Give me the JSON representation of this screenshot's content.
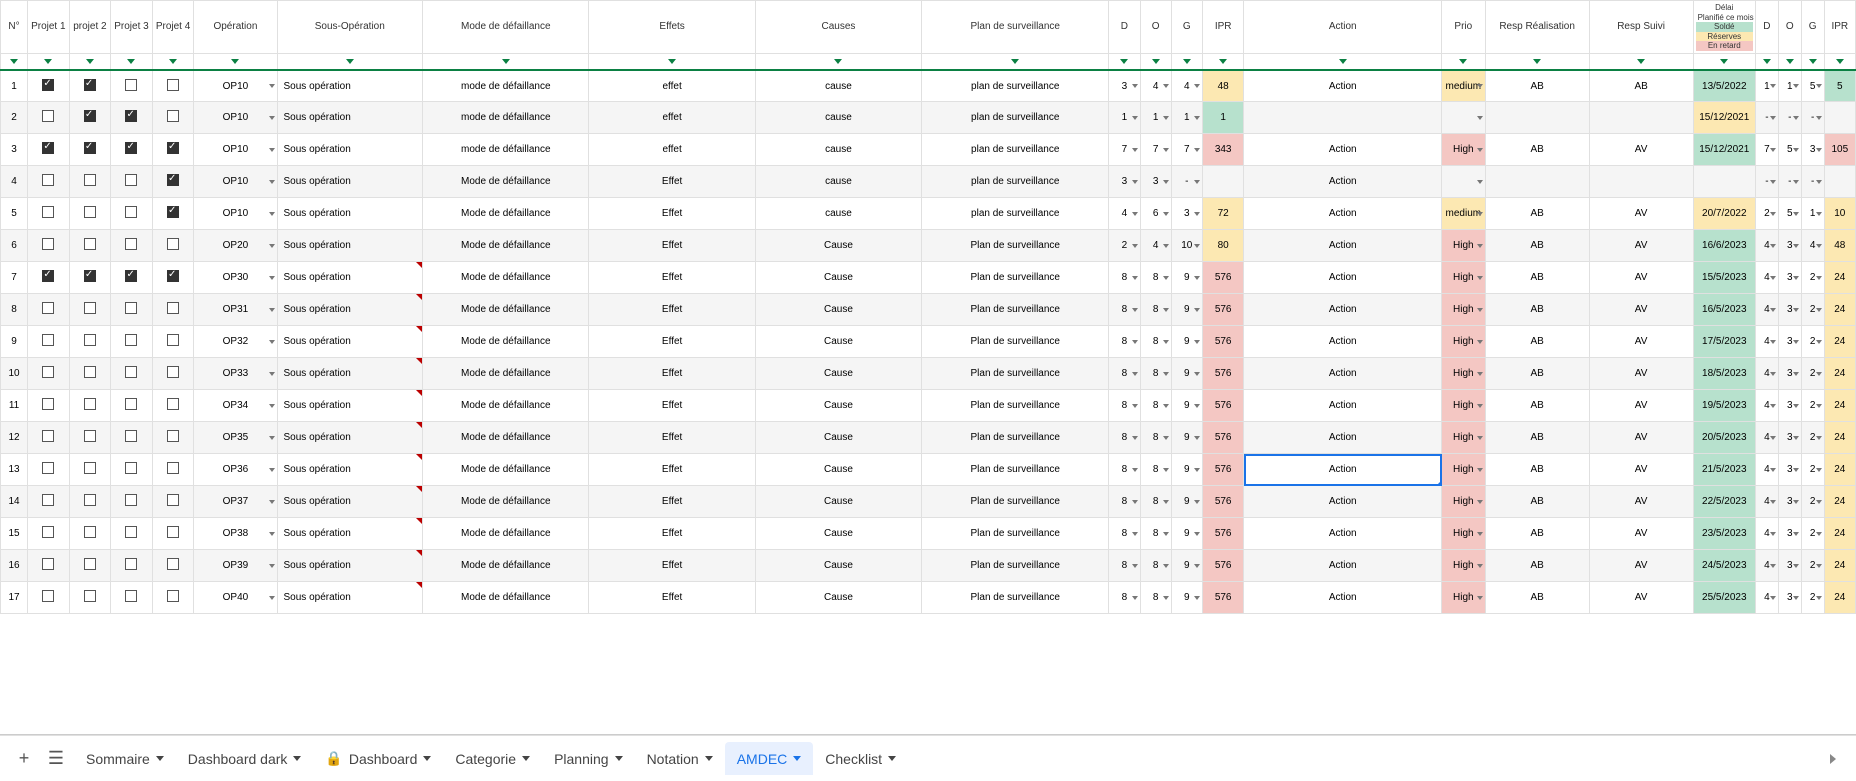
{
  "headers": {
    "num": "N°",
    "projet1": "Projet 1",
    "projet2": "projet 2",
    "projet3": "Projet 3",
    "projet4": "Projet 4",
    "operation": "Opération",
    "sousOperation": "Sous-Opération",
    "modeDef": "Mode de défaillance",
    "effets": "Effets",
    "causes": "Causes",
    "plan": "Plan de surveillance",
    "d": "D",
    "o": "O",
    "g": "G",
    "ipr": "IPR",
    "action": "Action",
    "prio": "Prio",
    "respReal": "Resp Réalisation",
    "respSuivi": "Resp Suivi",
    "delai": "Délai",
    "d2": "D",
    "o2": "O",
    "g2": "G",
    "ipr2": "IPR"
  },
  "legend": {
    "planifie": "Planifié ce mois",
    "solde": "Soldé",
    "reserves": "Réserves",
    "retard": "En retard"
  },
  "colors": {
    "solde": "#b7e1cd",
    "reserves": "#fce8b2",
    "retard": "#f4c7c3",
    "iprRed": "#f4c7c3",
    "iprGreen": "#b7e1cd",
    "iprOrange": "#fce8b2",
    "prioHigh": "#f4c7c3",
    "prioMed": "#fce8b2",
    "dateGreen": "#b7e1cd",
    "dateYellow": "#fce8b2",
    "border": "#e0e0e0",
    "filterBorder": "#0b8043",
    "selection": "#1a73e8"
  },
  "rows": [
    {
      "n": 1,
      "p1": true,
      "p2": true,
      "p3": false,
      "p4": false,
      "op": "OP10",
      "sop": "Sous opération",
      "mode": "mode de défaillance",
      "eff": "effet",
      "cau": "cause",
      "plan": "plan de surveillance",
      "d": 3,
      "o": 4,
      "g": 4,
      "ipr": 48,
      "iprC": "orange",
      "act": "Action",
      "prio": "medium",
      "prioC": "med",
      "rr": "AB",
      "rs": "AB",
      "date": "13/5/2022",
      "dateC": "green",
      "d2": 1,
      "o2": 1,
      "g2": 5,
      "ipr2": 5,
      "ipr2C": "green"
    },
    {
      "n": 2,
      "p1": false,
      "p2": true,
      "p3": true,
      "p4": false,
      "op": "OP10",
      "sop": "Sous opération",
      "mode": "mode de défaillance",
      "eff": "effet",
      "cau": "cause",
      "plan": "plan de surveillance",
      "d": 1,
      "o": 1,
      "g": 1,
      "ipr": 1,
      "iprC": "green",
      "act": "",
      "prio": "",
      "prioC": "",
      "rr": "",
      "rs": "",
      "date": "15/12/2021",
      "dateC": "yellow",
      "d2": "-",
      "o2": "-",
      "g2": "-",
      "ipr2": "",
      "ipr2C": ""
    },
    {
      "n": 3,
      "p1": true,
      "p2": true,
      "p3": true,
      "p4": true,
      "op": "OP10",
      "sop": "Sous opération",
      "mode": "mode de défaillance",
      "eff": "effet",
      "cau": "cause",
      "plan": "plan de surveillance",
      "d": 7,
      "o": 7,
      "g": 7,
      "ipr": 343,
      "iprC": "red",
      "act": "Action",
      "prio": "High",
      "prioC": "high",
      "rr": "AB",
      "rs": "AV",
      "date": "15/12/2021",
      "dateC": "green",
      "d2": 7,
      "o2": 5,
      "g2": 3,
      "ipr2": 105,
      "ipr2C": "red"
    },
    {
      "n": 4,
      "p1": false,
      "p2": false,
      "p3": false,
      "p4": true,
      "op": "OP10",
      "sop": "Sous opération",
      "mode": "Mode de défaillance",
      "eff": "Effet",
      "cau": "cause",
      "plan": "plan de surveillance",
      "d": 3,
      "o": 3,
      "g": "-",
      "ipr": "",
      "iprC": "",
      "act": "Action",
      "prio": "",
      "prioC": "",
      "rr": "",
      "rs": "",
      "date": "",
      "dateC": "",
      "d2": "-",
      "o2": "-",
      "g2": "-",
      "ipr2": "",
      "ipr2C": ""
    },
    {
      "n": 5,
      "p1": false,
      "p2": false,
      "p3": false,
      "p4": true,
      "op": "OP10",
      "sop": "Sous opération",
      "mode": "Mode de défaillance",
      "eff": "Effet",
      "cau": "cause",
      "plan": "plan de surveillance",
      "d": 4,
      "o": 6,
      "g": 3,
      "ipr": 72,
      "iprC": "orange",
      "act": "Action",
      "prio": "medium",
      "prioC": "med",
      "rr": "AB",
      "rs": "AV",
      "date": "20/7/2022",
      "dateC": "yellow",
      "d2": 2,
      "o2": 5,
      "g2": 1,
      "ipr2": 10,
      "ipr2C": "orange"
    },
    {
      "n": 6,
      "p1": false,
      "p2": false,
      "p3": false,
      "p4": false,
      "op": "OP20",
      "sop": "Sous opération",
      "mode": "Mode de défaillance",
      "eff": "Effet",
      "cau": "Cause",
      "plan": "Plan de surveillance",
      "d": 2,
      "o": 4,
      "g": 10,
      "ipr": 80,
      "iprC": "orange",
      "act": "Action",
      "prio": "High",
      "prioC": "high",
      "rr": "AB",
      "rs": "AV",
      "date": "16/6/2023",
      "dateC": "green",
      "d2": 4,
      "o2": 3,
      "g2": 4,
      "ipr2": 48,
      "ipr2C": "orange"
    },
    {
      "n": 7,
      "p1": true,
      "p2": true,
      "p3": true,
      "p4": true,
      "op": "OP30",
      "sop": "Sous opération",
      "mode": "Mode de défaillance",
      "eff": "Effet",
      "cau": "Cause",
      "plan": "Plan de surveillance",
      "d": 8,
      "o": 8,
      "g": 9,
      "ipr": 576,
      "iprC": "red",
      "act": "Action",
      "prio": "High",
      "prioC": "high",
      "rr": "AB",
      "rs": "AV",
      "date": "15/5/2023",
      "dateC": "green",
      "d2": 4,
      "o2": 3,
      "g2": 2,
      "ipr2": 24,
      "ipr2C": "orange",
      "note": true
    },
    {
      "n": 8,
      "p1": false,
      "p2": false,
      "p3": false,
      "p4": false,
      "op": "OP31",
      "sop": "Sous opération",
      "mode": "Mode de défaillance",
      "eff": "Effet",
      "cau": "Cause",
      "plan": "Plan de surveillance",
      "d": 8,
      "o": 8,
      "g": 9,
      "ipr": 576,
      "iprC": "red",
      "act": "Action",
      "prio": "High",
      "prioC": "high",
      "rr": "AB",
      "rs": "AV",
      "date": "16/5/2023",
      "dateC": "green",
      "d2": 4,
      "o2": 3,
      "g2": 2,
      "ipr2": 24,
      "ipr2C": "orange",
      "note": true
    },
    {
      "n": 9,
      "p1": false,
      "p2": false,
      "p3": false,
      "p4": false,
      "op": "OP32",
      "sop": "Sous opération",
      "mode": "Mode de défaillance",
      "eff": "Effet",
      "cau": "Cause",
      "plan": "Plan de surveillance",
      "d": 8,
      "o": 8,
      "g": 9,
      "ipr": 576,
      "iprC": "red",
      "act": "Action",
      "prio": "High",
      "prioC": "high",
      "rr": "AB",
      "rs": "AV",
      "date": "17/5/2023",
      "dateC": "green",
      "d2": 4,
      "o2": 3,
      "g2": 2,
      "ipr2": 24,
      "ipr2C": "orange",
      "note": true
    },
    {
      "n": 10,
      "p1": false,
      "p2": false,
      "p3": false,
      "p4": false,
      "op": "OP33",
      "sop": "Sous opération",
      "mode": "Mode de défaillance",
      "eff": "Effet",
      "cau": "Cause",
      "plan": "Plan de surveillance",
      "d": 8,
      "o": 8,
      "g": 9,
      "ipr": 576,
      "iprC": "red",
      "act": "Action",
      "prio": "High",
      "prioC": "high",
      "rr": "AB",
      "rs": "AV",
      "date": "18/5/2023",
      "dateC": "green",
      "d2": 4,
      "o2": 3,
      "g2": 2,
      "ipr2": 24,
      "ipr2C": "orange",
      "note": true
    },
    {
      "n": 11,
      "p1": false,
      "p2": false,
      "p3": false,
      "p4": false,
      "op": "OP34",
      "sop": "Sous opération",
      "mode": "Mode de défaillance",
      "eff": "Effet",
      "cau": "Cause",
      "plan": "Plan de surveillance",
      "d": 8,
      "o": 8,
      "g": 9,
      "ipr": 576,
      "iprC": "red",
      "act": "Action",
      "prio": "High",
      "prioC": "high",
      "rr": "AB",
      "rs": "AV",
      "date": "19/5/2023",
      "dateC": "green",
      "d2": 4,
      "o2": 3,
      "g2": 2,
      "ipr2": 24,
      "ipr2C": "orange",
      "note": true
    },
    {
      "n": 12,
      "p1": false,
      "p2": false,
      "p3": false,
      "p4": false,
      "op": "OP35",
      "sop": "Sous opération",
      "mode": "Mode de défaillance",
      "eff": "Effet",
      "cau": "Cause",
      "plan": "Plan de surveillance",
      "d": 8,
      "o": 8,
      "g": 9,
      "ipr": 576,
      "iprC": "red",
      "act": "Action",
      "prio": "High",
      "prioC": "high",
      "rr": "AB",
      "rs": "AV",
      "date": "20/5/2023",
      "dateC": "green",
      "d2": 4,
      "o2": 3,
      "g2": 2,
      "ipr2": 24,
      "ipr2C": "orange",
      "note": true
    },
    {
      "n": 13,
      "p1": false,
      "p2": false,
      "p3": false,
      "p4": false,
      "op": "OP36",
      "sop": "Sous opération",
      "mode": "Mode de défaillance",
      "eff": "Effet",
      "cau": "Cause",
      "plan": "Plan de surveillance",
      "d": 8,
      "o": 8,
      "g": 9,
      "ipr": 576,
      "iprC": "red",
      "act": "Action",
      "prio": "High",
      "prioC": "high",
      "rr": "AB",
      "rs": "AV",
      "date": "21/5/2023",
      "dateC": "green",
      "d2": 4,
      "o2": 3,
      "g2": 2,
      "ipr2": 24,
      "ipr2C": "orange",
      "note": true,
      "sel": true
    },
    {
      "n": 14,
      "p1": false,
      "p2": false,
      "p3": false,
      "p4": false,
      "op": "OP37",
      "sop": "Sous opération",
      "mode": "Mode de défaillance",
      "eff": "Effet",
      "cau": "Cause",
      "plan": "Plan de surveillance",
      "d": 8,
      "o": 8,
      "g": 9,
      "ipr": 576,
      "iprC": "red",
      "act": "Action",
      "prio": "High",
      "prioC": "high",
      "rr": "AB",
      "rs": "AV",
      "date": "22/5/2023",
      "dateC": "green",
      "d2": 4,
      "o2": 3,
      "g2": 2,
      "ipr2": 24,
      "ipr2C": "orange",
      "note": true
    },
    {
      "n": 15,
      "p1": false,
      "p2": false,
      "p3": false,
      "p4": false,
      "op": "OP38",
      "sop": "Sous opération",
      "mode": "Mode de défaillance",
      "eff": "Effet",
      "cau": "Cause",
      "plan": "Plan de surveillance",
      "d": 8,
      "o": 8,
      "g": 9,
      "ipr": 576,
      "iprC": "red",
      "act": "Action",
      "prio": "High",
      "prioC": "high",
      "rr": "AB",
      "rs": "AV",
      "date": "23/5/2023",
      "dateC": "green",
      "d2": 4,
      "o2": 3,
      "g2": 2,
      "ipr2": 24,
      "ipr2C": "orange",
      "note": true
    },
    {
      "n": 16,
      "p1": false,
      "p2": false,
      "p3": false,
      "p4": false,
      "op": "OP39",
      "sop": "Sous opération",
      "mode": "Mode de défaillance",
      "eff": "Effet",
      "cau": "Cause",
      "plan": "Plan de surveillance",
      "d": 8,
      "o": 8,
      "g": 9,
      "ipr": 576,
      "iprC": "red",
      "act": "Action",
      "prio": "High",
      "prioC": "high",
      "rr": "AB",
      "rs": "AV",
      "date": "24/5/2023",
      "dateC": "green",
      "d2": 4,
      "o2": 3,
      "g2": 2,
      "ipr2": 24,
      "ipr2C": "orange",
      "note": true
    },
    {
      "n": 17,
      "p1": false,
      "p2": false,
      "p3": false,
      "p4": false,
      "op": "OP40",
      "sop": "Sous opération",
      "mode": "Mode de défaillance",
      "eff": "Effet",
      "cau": "Cause",
      "plan": "Plan de surveillance",
      "d": 8,
      "o": 8,
      "g": 9,
      "ipr": 576,
      "iprC": "red",
      "act": "Action",
      "prio": "High",
      "prioC": "high",
      "rr": "AB",
      "rs": "AV",
      "date": "25/5/2023",
      "dateC": "green",
      "d2": 4,
      "o2": 3,
      "g2": 2,
      "ipr2": 24,
      "ipr2C": "orange",
      "note": true
    }
  ],
  "tabs": [
    {
      "label": "Sommaire",
      "active": false,
      "lock": false
    },
    {
      "label": "Dashboard dark",
      "active": false,
      "lock": false
    },
    {
      "label": "Dashboard",
      "active": false,
      "lock": true
    },
    {
      "label": "Categorie",
      "active": false,
      "lock": false
    },
    {
      "label": "Planning",
      "active": false,
      "lock": false
    },
    {
      "label": "Notation",
      "active": false,
      "lock": false
    },
    {
      "label": "AMDEC",
      "active": true,
      "lock": false
    },
    {
      "label": "Checklist",
      "active": false,
      "lock": false
    }
  ],
  "colWidths": {
    "num": 26,
    "proj": 40,
    "op": 80,
    "sop": 140,
    "mode": 160,
    "eff": 160,
    "cau": 160,
    "plan": 180,
    "dog": 30,
    "ipr": 40,
    "action": 190,
    "prio": 42,
    "resp": 100,
    "date": 60,
    "dog2": 22,
    "ipr2": 30
  }
}
